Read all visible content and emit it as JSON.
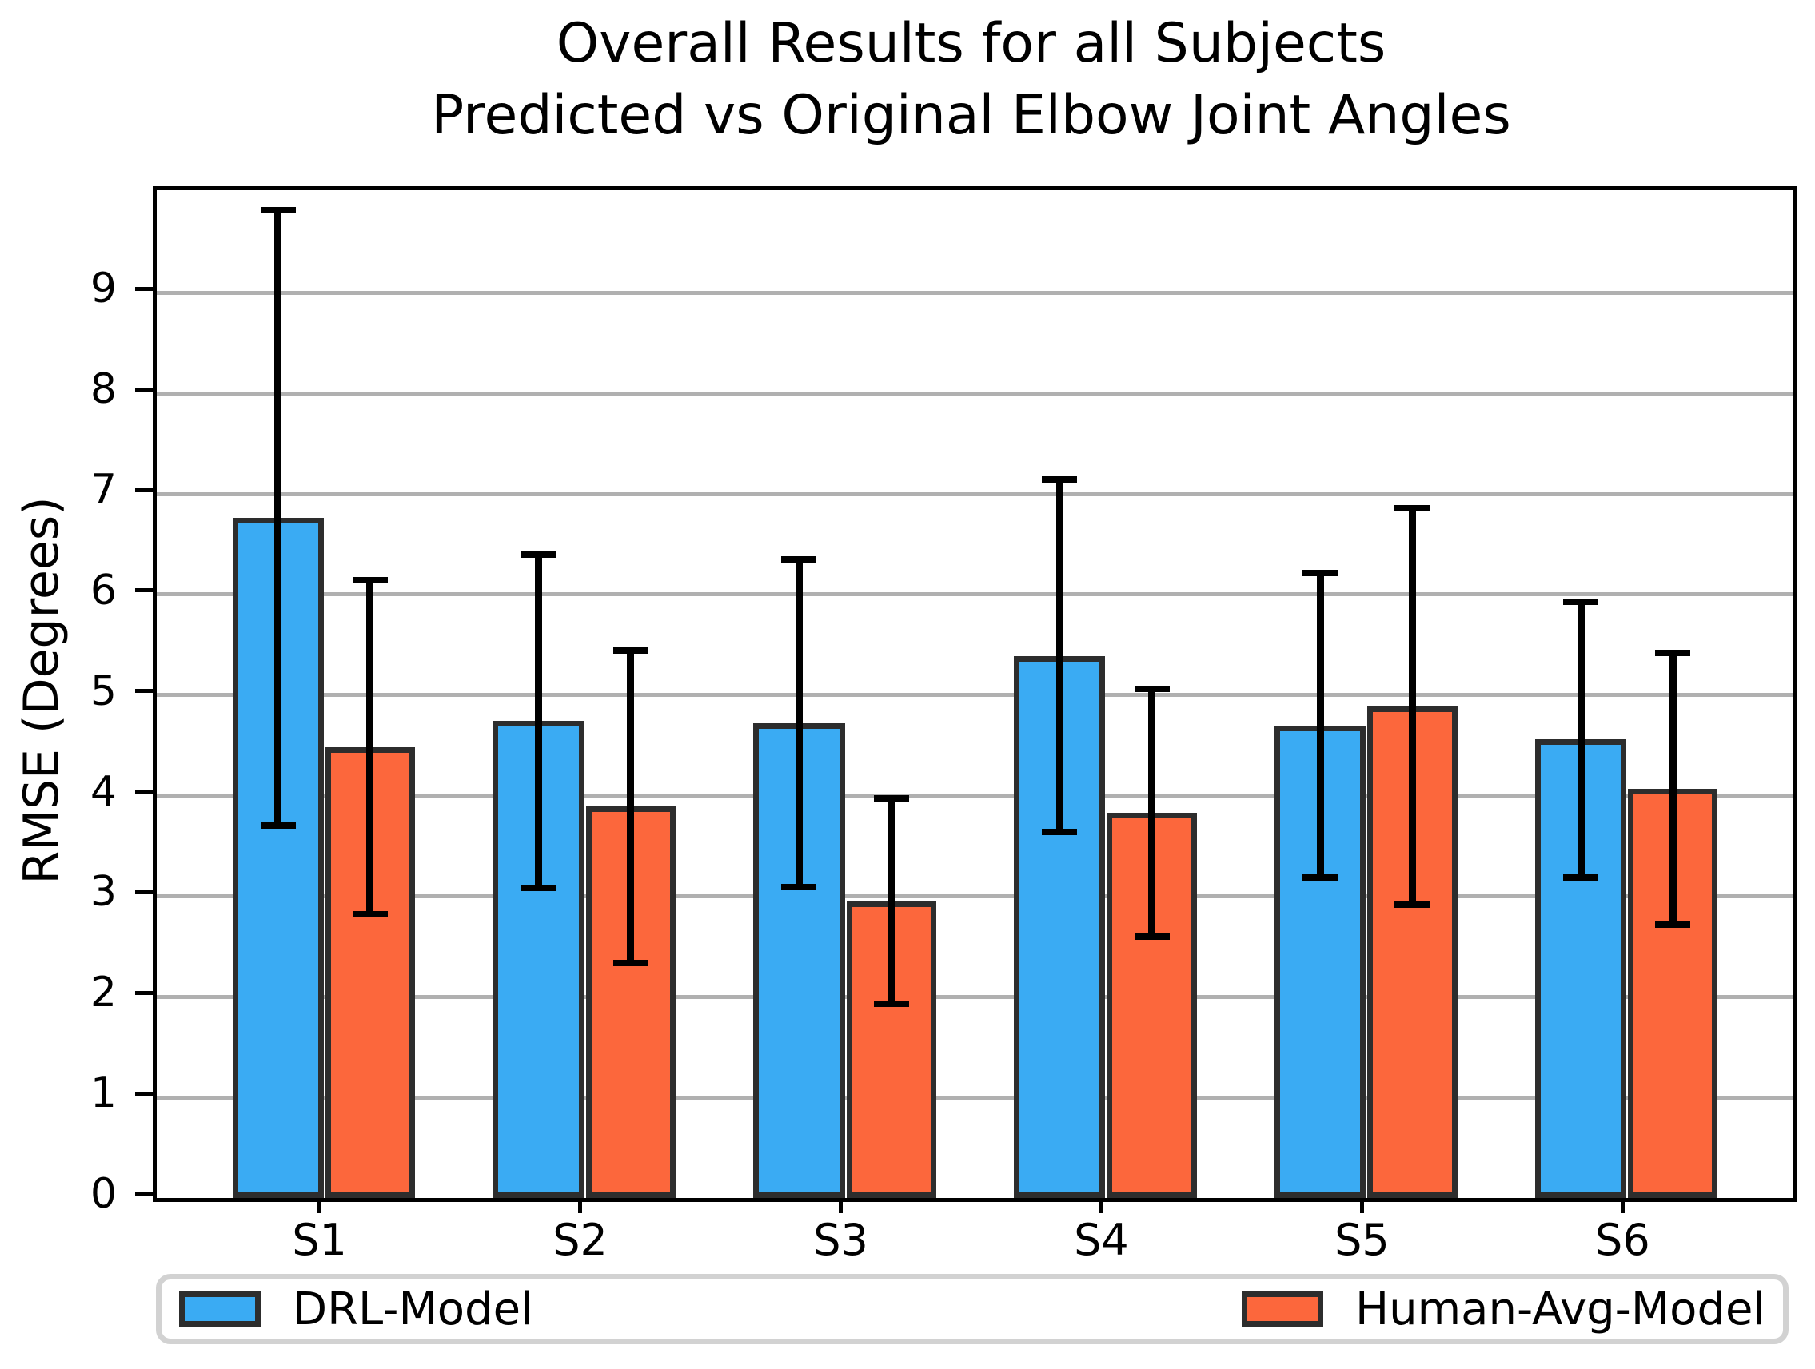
{
  "title": {
    "line1": "Overall Results for all Subjects",
    "line2": "Predicted vs Original Elbow Joint Angles"
  },
  "y_axis": {
    "label": "RMSE (Degrees)",
    "tick_labels": [
      "0",
      "1",
      "2",
      "3",
      "4",
      "5",
      "6",
      "7",
      "8",
      "9"
    ]
  },
  "x_axis": {
    "tick_labels": [
      "S1",
      "S2",
      "S3",
      "S4",
      "S5",
      "S6"
    ]
  },
  "legend": {
    "items": [
      {
        "label": "DRL-Model",
        "color": "#3aabf3"
      },
      {
        "label": "Human-Avg-Model",
        "color": "#fc673c"
      }
    ]
  },
  "colors": {
    "bar_blue": "#3aabf3",
    "bar_orange": "#fc673c",
    "bar_edge": "#2d2d2d",
    "error_bar": "#000000",
    "gridline": "#b0b0b0",
    "axis_spine": "#000000",
    "legend_border": "#d2d2d2"
  },
  "chart_data": {
    "type": "bar",
    "title": "Overall Results for all Subjects — Predicted vs Original Elbow Joint Angles",
    "categories": [
      "S1",
      "S2",
      "S3",
      "S4",
      "S5",
      "S6"
    ],
    "series": [
      {
        "name": "DRL-Model",
        "color": "#3aabf3",
        "values": [
          6.76,
          4.74,
          4.72,
          5.39,
          4.7,
          4.56
        ],
        "errors": [
          3.06,
          1.66,
          1.63,
          1.75,
          1.51,
          1.37
        ]
      },
      {
        "name": "Human-Avg-Model",
        "color": "#fc673c",
        "values": [
          4.48,
          3.89,
          2.95,
          3.83,
          4.89,
          4.07
        ],
        "errors": [
          1.66,
          1.55,
          1.02,
          1.23,
          1.97,
          1.35
        ]
      }
    ],
    "xlabel": "",
    "ylabel": "RMSE (Degrees)",
    "ylim": [
      0,
      10.02
    ],
    "yticks": [
      0,
      1,
      2,
      3,
      4,
      5,
      6,
      7,
      8,
      9
    ],
    "grid": "horizontal-y",
    "bar_width_units": 0.35,
    "error_bars": "symmetric with caps",
    "legend_position": "bottom, expanded full width, 2 columns"
  }
}
